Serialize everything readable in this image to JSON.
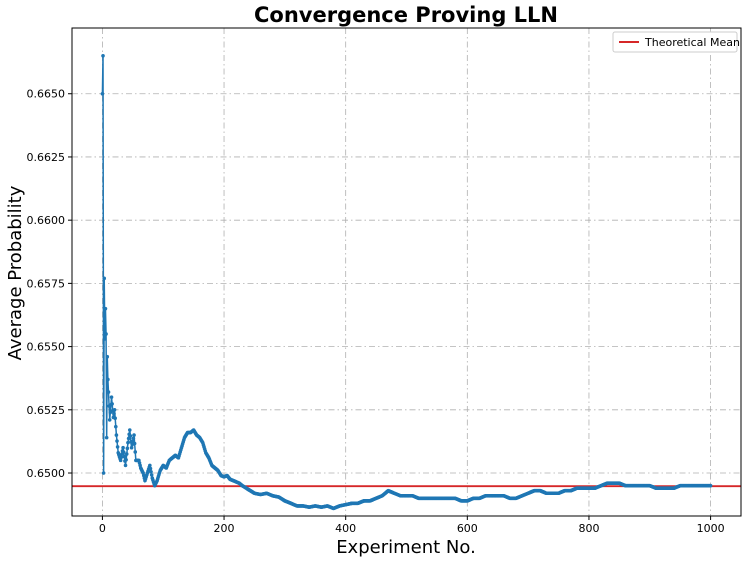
{
  "chart_data": {
    "type": "line",
    "title": "Convergence Proving LLN",
    "xlabel": "Experiment No.",
    "ylabel": "Average Probability",
    "xlim": [
      -50,
      1050
    ],
    "ylim": [
      0.6483,
      0.6676
    ],
    "xticks": [
      0,
      200,
      400,
      600,
      800,
      1000
    ],
    "yticks": [
      0.65,
      0.6525,
      0.655,
      0.6575,
      0.66,
      0.6625,
      0.665
    ],
    "ytick_labels": [
      "0.6500",
      "0.6525",
      "0.6550",
      "0.6575",
      "0.6600",
      "0.6625",
      "0.6650"
    ],
    "grid": true,
    "grid_style": "dash-dot",
    "legend_position": "top-right",
    "colors": {
      "series": "#1f77b4",
      "mean": "#d62728"
    },
    "reference_line": {
      "name": "Theoretical Mean",
      "y": 0.64948
    },
    "series": [
      {
        "marker": "dot",
        "anchors": [
          [
            0,
            0.665
          ],
          [
            1,
            0.6665
          ],
          [
            2,
            0.65
          ],
          [
            3,
            0.6577
          ],
          [
            4,
            0.6553
          ],
          [
            5,
            0.6565
          ],
          [
            6,
            0.6555
          ],
          [
            7,
            0.6514
          ],
          [
            8,
            0.6546
          ],
          [
            9,
            0.6537
          ],
          [
            10,
            0.6532
          ],
          [
            12,
            0.6521
          ],
          [
            15,
            0.653
          ],
          [
            18,
            0.6522
          ],
          [
            20,
            0.6525
          ],
          [
            23,
            0.6515
          ],
          [
            26,
            0.6508
          ],
          [
            30,
            0.6505
          ],
          [
            34,
            0.651
          ],
          [
            38,
            0.6503
          ],
          [
            42,
            0.6512
          ],
          [
            45,
            0.6517
          ],
          [
            48,
            0.651
          ],
          [
            52,
            0.6515
          ],
          [
            55,
            0.6505
          ],
          [
            60,
            0.6505
          ],
          [
            63,
            0.6502
          ],
          [
            67,
            0.65
          ],
          [
            70,
            0.6497
          ],
          [
            74,
            0.65
          ],
          [
            78,
            0.6503
          ],
          [
            82,
            0.6498
          ],
          [
            86,
            0.6495
          ],
          [
            90,
            0.6497
          ],
          [
            95,
            0.6501
          ],
          [
            100,
            0.6503
          ],
          [
            105,
            0.6502
          ],
          [
            110,
            0.6505
          ],
          [
            115,
            0.6506
          ],
          [
            120,
            0.6507
          ],
          [
            125,
            0.6506
          ],
          [
            130,
            0.651
          ],
          [
            135,
            0.6514
          ],
          [
            140,
            0.6516
          ],
          [
            145,
            0.6516
          ],
          [
            150,
            0.6517
          ],
          [
            155,
            0.6515
          ],
          [
            160,
            0.6514
          ],
          [
            165,
            0.6512
          ],
          [
            170,
            0.6508
          ],
          [
            175,
            0.6506
          ],
          [
            180,
            0.6503
          ],
          [
            185,
            0.6502
          ],
          [
            190,
            0.6501
          ],
          [
            195,
            0.6499
          ],
          [
            200,
            0.64985
          ],
          [
            205,
            0.6499
          ],
          [
            210,
            0.64975
          ],
          [
            215,
            0.6497
          ],
          [
            220,
            0.64965
          ],
          [
            225,
            0.6496
          ],
          [
            230,
            0.6495
          ],
          [
            240,
            0.64935
          ],
          [
            250,
            0.6492
          ],
          [
            260,
            0.64915
          ],
          [
            270,
            0.6492
          ],
          [
            280,
            0.6491
          ],
          [
            290,
            0.64905
          ],
          [
            300,
            0.6489
          ],
          [
            310,
            0.6488
          ],
          [
            320,
            0.6487
          ],
          [
            330,
            0.6487
          ],
          [
            340,
            0.64865
          ],
          [
            350,
            0.6487
          ],
          [
            360,
            0.64865
          ],
          [
            370,
            0.6487
          ],
          [
            380,
            0.6486
          ],
          [
            390,
            0.6487
          ],
          [
            400,
            0.64875
          ],
          [
            410,
            0.6488
          ],
          [
            420,
            0.6488
          ],
          [
            430,
            0.6489
          ],
          [
            440,
            0.6489
          ],
          [
            450,
            0.649
          ],
          [
            460,
            0.6491
          ],
          [
            470,
            0.6493
          ],
          [
            480,
            0.6492
          ],
          [
            490,
            0.6491
          ],
          [
            500,
            0.6491
          ],
          [
            510,
            0.6491
          ],
          [
            520,
            0.649
          ],
          [
            530,
            0.649
          ],
          [
            540,
            0.649
          ],
          [
            550,
            0.649
          ],
          [
            560,
            0.649
          ],
          [
            570,
            0.649
          ],
          [
            580,
            0.649
          ],
          [
            590,
            0.6489
          ],
          [
            600,
            0.6489
          ],
          [
            610,
            0.649
          ],
          [
            620,
            0.649
          ],
          [
            630,
            0.6491
          ],
          [
            640,
            0.6491
          ],
          [
            650,
            0.6491
          ],
          [
            660,
            0.6491
          ],
          [
            670,
            0.649
          ],
          [
            680,
            0.649
          ],
          [
            690,
            0.6491
          ],
          [
            700,
            0.6492
          ],
          [
            710,
            0.6493
          ],
          [
            720,
            0.6493
          ],
          [
            730,
            0.6492
          ],
          [
            740,
            0.6492
          ],
          [
            750,
            0.6492
          ],
          [
            760,
            0.6493
          ],
          [
            770,
            0.6493
          ],
          [
            780,
            0.6494
          ],
          [
            790,
            0.6494
          ],
          [
            800,
            0.6494
          ],
          [
            810,
            0.6494
          ],
          [
            820,
            0.6495
          ],
          [
            830,
            0.6496
          ],
          [
            840,
            0.6496
          ],
          [
            850,
            0.6496
          ],
          [
            860,
            0.6495
          ],
          [
            870,
            0.6495
          ],
          [
            880,
            0.6495
          ],
          [
            890,
            0.6495
          ],
          [
            900,
            0.6495
          ],
          [
            910,
            0.6494
          ],
          [
            920,
            0.6494
          ],
          [
            930,
            0.6494
          ],
          [
            940,
            0.6494
          ],
          [
            950,
            0.6495
          ],
          [
            960,
            0.6495
          ],
          [
            970,
            0.6495
          ],
          [
            980,
            0.6495
          ],
          [
            990,
            0.6495
          ],
          [
            1000,
            0.6495
          ]
        ]
      }
    ]
  }
}
